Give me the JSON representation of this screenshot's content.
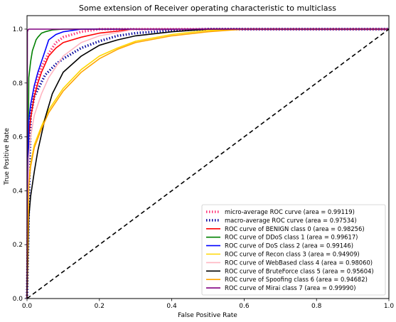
{
  "chart_data": {
    "type": "line",
    "title": "Some extension of Receiver operating characteristic to multiclass",
    "xlabel": "False Positive Rate",
    "ylabel": "True Positive Rate",
    "xlim": [
      0.0,
      1.0
    ],
    "ylim": [
      0.0,
      1.05
    ],
    "xticks": [
      "0.0",
      "0.2",
      "0.4",
      "0.6",
      "0.8",
      "1.0"
    ],
    "yticks": [
      "0.0",
      "0.2",
      "0.4",
      "0.6",
      "0.8",
      "1.0"
    ],
    "grid": false,
    "legend_position": "lower-right",
    "series": [
      {
        "name": "micro-average ROC curve (area = 0.99119)",
        "color": "#ff3377",
        "style": "dotted",
        "x": [
          0,
          0.005,
          0.01,
          0.02,
          0.03,
          0.04,
          0.06,
          0.08,
          0.1,
          0.15,
          0.2,
          1.0
        ],
        "y": [
          0,
          0.6,
          0.68,
          0.76,
          0.82,
          0.86,
          0.91,
          0.95,
          0.97,
          0.99,
          1.0,
          1.0
        ]
      },
      {
        "name": "macro-average ROC curve (area = 0.97534)",
        "color": "#0a0aa0",
        "style": "dotted",
        "x": [
          0,
          0.01,
          0.02,
          0.05,
          0.08,
          0.1,
          0.15,
          0.2,
          0.25,
          0.3,
          0.35,
          0.4,
          0.5,
          1.0
        ],
        "y": [
          0,
          0.68,
          0.75,
          0.83,
          0.87,
          0.89,
          0.93,
          0.955,
          0.975,
          0.985,
          0.99,
          0.995,
          1.0,
          1.0
        ]
      },
      {
        "name": "ROC curve of BENIGN class 0 (area = 0.98256)",
        "color": "#ff0000",
        "style": "solid",
        "x": [
          0,
          0.005,
          0.01,
          0.02,
          0.03,
          0.04,
          0.05,
          0.06,
          0.08,
          0.1,
          0.15,
          0.2,
          0.3,
          1.0
        ],
        "y": [
          0,
          0.6,
          0.67,
          0.75,
          0.8,
          0.84,
          0.87,
          0.9,
          0.93,
          0.95,
          0.97,
          0.985,
          1.0,
          1.0
        ]
      },
      {
        "name": "ROC curve of DDoS class 1 (area = 0.99617)",
        "color": "#008000",
        "style": "solid",
        "x": [
          0,
          0.005,
          0.01,
          0.015,
          0.02,
          0.025,
          0.03,
          0.04,
          0.05,
          0.07,
          0.1,
          1.0
        ],
        "y": [
          0,
          0.82,
          0.88,
          0.92,
          0.94,
          0.96,
          0.97,
          0.985,
          0.99,
          0.997,
          1.0,
          1.0
        ]
      },
      {
        "name": "ROC curve of DoS class 2 (area = 0.99146)",
        "color": "#0000ff",
        "style": "solid",
        "x": [
          0,
          0.005,
          0.01,
          0.02,
          0.03,
          0.04,
          0.05,
          0.06,
          0.08,
          0.1,
          0.15,
          1.0
        ],
        "y": [
          0,
          0.66,
          0.72,
          0.79,
          0.84,
          0.88,
          0.92,
          0.96,
          0.98,
          0.99,
          1.0,
          1.0
        ]
      },
      {
        "name": "ROC curve of Recon class 3 (area = 0.94909)",
        "color": "#ffd700",
        "style": "solid",
        "x": [
          0,
          0.005,
          0.01,
          0.02,
          0.04,
          0.06,
          0.08,
          0.1,
          0.15,
          0.2,
          0.25,
          0.3,
          0.4,
          0.5,
          0.6,
          1.0
        ],
        "y": [
          0,
          0.44,
          0.5,
          0.57,
          0.64,
          0.7,
          0.74,
          0.78,
          0.85,
          0.9,
          0.93,
          0.955,
          0.98,
          0.995,
          1.0,
          1.0
        ]
      },
      {
        "name": "ROC curve of WebBased class 4 (area = 0.98060)",
        "color": "#ffb6c1",
        "style": "solid",
        "x": [
          0,
          0.005,
          0.01,
          0.02,
          0.04,
          0.06,
          0.08,
          0.1,
          0.15,
          0.2,
          0.3,
          1.0
        ],
        "y": [
          0,
          0.52,
          0.6,
          0.68,
          0.76,
          0.82,
          0.86,
          0.9,
          0.95,
          0.975,
          1.0,
          1.0
        ]
      },
      {
        "name": "ROC curve of BruteForce class 5 (area = 0.95604)",
        "color": "#000000",
        "style": "solid",
        "x": [
          0,
          0.005,
          0.01,
          0.02,
          0.03,
          0.05,
          0.07,
          0.1,
          0.15,
          0.2,
          0.25,
          0.3,
          0.4,
          0.5,
          1.0
        ],
        "y": [
          0,
          0.3,
          0.38,
          0.47,
          0.55,
          0.67,
          0.76,
          0.84,
          0.9,
          0.94,
          0.96,
          0.975,
          0.99,
          1.0,
          1.0
        ]
      },
      {
        "name": "ROC curve of Spoofing class 6 (area = 0.94682)",
        "color": "#ffa500",
        "style": "solid",
        "x": [
          0,
          0.005,
          0.01,
          0.02,
          0.04,
          0.06,
          0.08,
          0.1,
          0.15,
          0.2,
          0.25,
          0.3,
          0.4,
          0.5,
          0.6,
          1.0
        ],
        "y": [
          0,
          0.42,
          0.49,
          0.56,
          0.63,
          0.69,
          0.73,
          0.77,
          0.84,
          0.89,
          0.925,
          0.95,
          0.975,
          0.99,
          1.0,
          1.0
        ]
      },
      {
        "name": "ROC curve of Mirai class 7 (area = 0.99990)",
        "color": "#800080",
        "style": "solid",
        "x": [
          0,
          0.001,
          0.003,
          0.005,
          1.0
        ],
        "y": [
          0,
          0.99,
          0.998,
          1.0,
          1.0
        ]
      }
    ],
    "reference_line": {
      "x": [
        0,
        1
      ],
      "y": [
        0,
        1
      ],
      "color": "#000000",
      "style": "dashed"
    }
  }
}
